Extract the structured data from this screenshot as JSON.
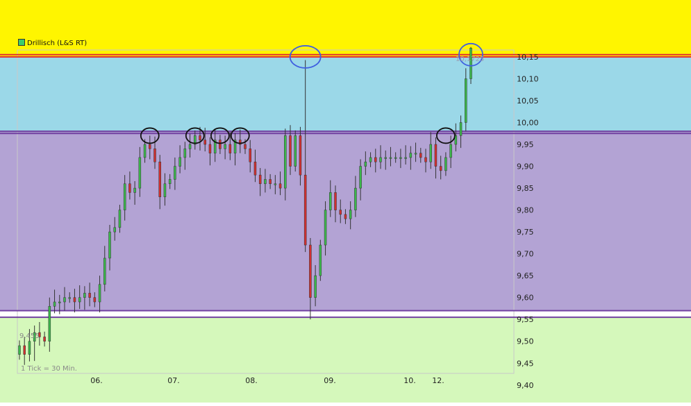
{
  "legend": {
    "label": "Drillisch (L&S RT)",
    "color": "#3ccc6c"
  },
  "annotations": {
    "max": "10,1725",
    "min": "9,455",
    "tick_note": "1 Tick = 30 Min."
  },
  "chart_data": {
    "type": "candlestick",
    "title": "",
    "xlabel": "",
    "ylabel": "",
    "ylim": [
      9.36,
      10.28
    ],
    "y_ticks": [
      "10,15",
      "10,10",
      "10,05",
      "10,00",
      "9,95",
      "9,90",
      "9,85",
      "9,80",
      "9,75",
      "9,70",
      "9,65",
      "9,60",
      "9,55",
      "9,50",
      "9,45",
      "9,40"
    ],
    "x_ticks": [
      "06.",
      "07.",
      "08.",
      "09.",
      "10.",
      "12."
    ],
    "zones": [
      {
        "from": 10.15,
        "to": 10.28,
        "color": "#fff500"
      },
      {
        "from": 9.98,
        "to": 10.15,
        "color": "#9bd8e8"
      },
      {
        "from": 9.57,
        "to": 9.98,
        "color": "#b3a3d4"
      },
      {
        "from": 9.555,
        "to": 9.57,
        "color": "#ffffff"
      },
      {
        "from": 9.36,
        "to": 9.555,
        "color": "#d5f8bb"
      }
    ],
    "horizontal_lines": [
      {
        "y": 10.15,
        "color": "#e03030"
      },
      {
        "y": 10.155,
        "color": "#e03030"
      },
      {
        "y": 9.98,
        "color": "#7040a0"
      },
      {
        "y": 9.975,
        "color": "#7040a0"
      },
      {
        "y": 9.57,
        "color": "#7040a0"
      },
      {
        "y": 9.555,
        "color": "#7040a0"
      }
    ],
    "up_color": "#3cb84c",
    "down_color": "#d03030",
    "max_value": 10.1725,
    "min_value": 9.455,
    "close_series": [
      9.49,
      9.47,
      9.5,
      9.52,
      9.51,
      9.5,
      9.58,
      9.59,
      9.59,
      9.6,
      9.6,
      9.59,
      9.6,
      9.61,
      9.6,
      9.59,
      9.63,
      9.69,
      9.75,
      9.76,
      9.8,
      9.86,
      9.84,
      9.85,
      9.92,
      9.95,
      9.94,
      9.91,
      9.83,
      9.86,
      9.87,
      9.9,
      9.92,
      9.94,
      9.95,
      9.97,
      9.96,
      9.95,
      9.93,
      9.96,
      9.94,
      9.95,
      9.93,
      9.96,
      9.95,
      9.94,
      9.91,
      9.88,
      9.86,
      9.87,
      9.86,
      9.86,
      9.85,
      9.97,
      9.9,
      9.97,
      9.88,
      9.72,
      9.6,
      9.65,
      9.72,
      9.8,
      9.84,
      9.8,
      9.79,
      9.78,
      9.8,
      9.85,
      9.9,
      9.91,
      9.92,
      9.91,
      9.92,
      9.92,
      9.92,
      9.92,
      9.92,
      9.92,
      9.93,
      9.93,
      9.92,
      9.91,
      9.95,
      9.9,
      9.89,
      9.92,
      9.95,
      9.97,
      10.0,
      10.1,
      10.17
    ],
    "highlight_circles": [
      {
        "x_index": 26,
        "y": 9.97,
        "color": "#111111"
      },
      {
        "x_index": 35,
        "y": 9.97,
        "color": "#111111"
      },
      {
        "x_index": 40,
        "y": 9.97,
        "color": "#111111"
      },
      {
        "x_index": 44,
        "y": 9.97,
        "color": "#111111"
      },
      {
        "x_index": 57,
        "y": 10.15,
        "color": "#4060e0"
      },
      {
        "x_index": 85,
        "y": 9.97,
        "color": "#111111"
      },
      {
        "x_index": 90,
        "y": 10.155,
        "color": "#4060e0"
      }
    ]
  }
}
